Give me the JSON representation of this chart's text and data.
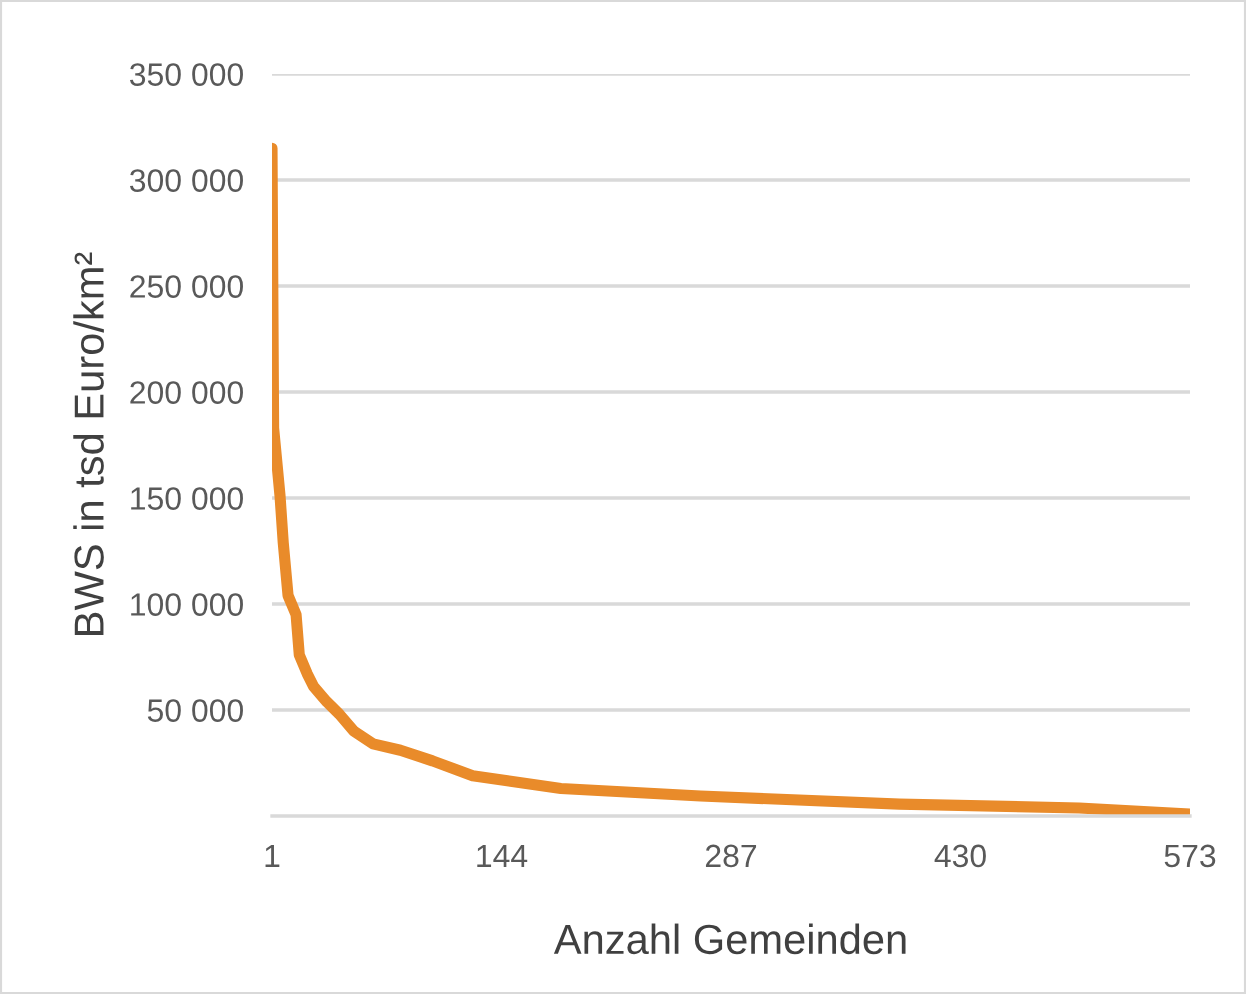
{
  "chart_data": {
    "type": "line",
    "xlabel": "Anzahl Gemeinden",
    "ylabel": "BWS in tsd Euro/km²",
    "xlim": [
      1,
      573
    ],
    "xticks": [
      1,
      144,
      287,
      430,
      573
    ],
    "ylim": [
      0,
      350000
    ],
    "yticks": [
      {
        "value": 50000,
        "label": "50 000"
      },
      {
        "value": 100000,
        "label": "100 000"
      },
      {
        "value": 150000,
        "label": "150 000"
      },
      {
        "value": 200000,
        "label": "200 000"
      },
      {
        "value": 250000,
        "label": "250 000"
      },
      {
        "value": 300000,
        "label": "300 000"
      },
      {
        "value": 350000,
        "label": "350 000"
      }
    ],
    "grid": "y",
    "legend": false,
    "series": [
      {
        "color": "#e98b2a",
        "x": [
          1,
          2,
          6,
          8,
          11,
          16,
          18,
          23,
          27,
          35,
          43,
          52,
          64,
          81,
          101,
          126,
          181,
          268,
          392,
          504,
          573
        ],
        "values": [
          315000,
          183000,
          151000,
          129000,
          104000,
          95000,
          76000,
          67000,
          61000,
          54000,
          48000,
          40000,
          34000,
          31000,
          26000,
          19000,
          13000,
          9400,
          5600,
          3800,
          900
        ]
      }
    ]
  }
}
